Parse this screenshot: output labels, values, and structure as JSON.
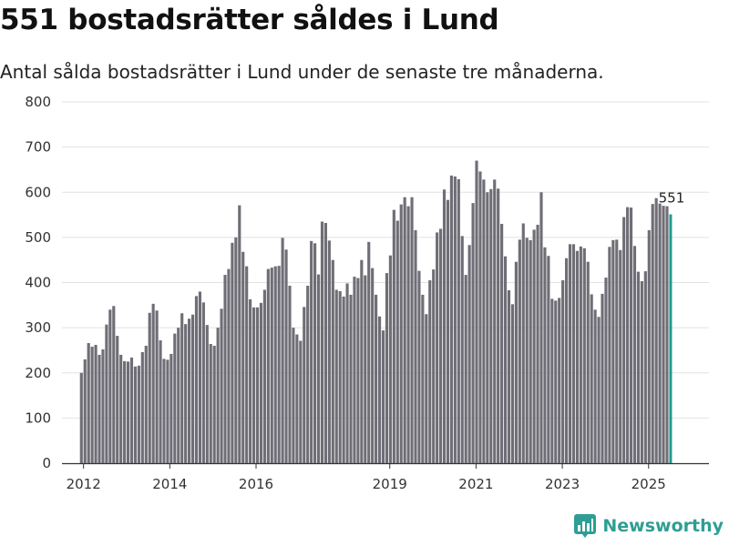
{
  "title": "551 bostadsrätter såldes i Lund",
  "subtitle": "Antal sålda bostadsrätter i Lund under de senaste tre månaderna.",
  "brand": {
    "name": "Newsworthy",
    "color": "#2e9e94",
    "icon": "newsworthy-logo-icon"
  },
  "colors": {
    "bar": "#6f6e76",
    "highlight": "#1f9a8e",
    "grid": "#e2e2e2",
    "axis": "#333333"
  },
  "chart_data": {
    "type": "bar",
    "title": "551 bostadsrätter såldes i Lund",
    "xlabel": "",
    "ylabel": "",
    "ylim": [
      0,
      800
    ],
    "yticks": [
      0,
      100,
      200,
      300,
      400,
      500,
      600,
      700,
      800
    ],
    "xlim": [
      2011.5,
      2026.5
    ],
    "xticks": [
      {
        "label": "2012",
        "pos": 2012.0
      },
      {
        "label": "2014",
        "pos": 2014.0
      },
      {
        "label": "2016",
        "pos": 2016.0
      },
      {
        "label": "2019",
        "pos": 2019.1
      },
      {
        "label": "2021",
        "pos": 2021.1
      },
      {
        "label": "2023",
        "pos": 2023.1
      },
      {
        "label": "2025",
        "pos": 2025.1
      }
    ],
    "start": 2011.95,
    "step": 0.0833,
    "values": [
      200,
      230,
      266,
      258,
      262,
      240,
      252,
      307,
      340,
      348,
      282,
      240,
      226,
      225,
      234,
      214,
      216,
      246,
      260,
      333,
      353,
      338,
      272,
      231,
      229,
      242,
      287,
      300,
      332,
      308,
      320,
      329,
      370,
      380,
      356,
      306,
      264,
      260,
      300,
      342,
      417,
      430,
      488,
      500,
      571,
      468,
      436,
      363,
      345,
      345,
      355,
      384,
      430,
      433,
      436,
      437,
      499,
      473,
      393,
      300,
      285,
      271,
      346,
      393,
      492,
      487,
      418,
      535,
      532,
      493,
      450,
      384,
      381,
      369,
      398,
      373,
      413,
      410,
      450,
      416,
      490,
      432,
      373,
      325,
      294,
      421,
      460,
      561,
      537,
      573,
      589,
      569,
      589,
      516,
      426,
      373,
      330,
      405,
      429,
      511,
      519,
      606,
      583,
      637,
      635,
      629,
      503,
      417,
      483,
      576,
      670,
      646,
      628,
      600,
      607,
      628,
      608,
      530,
      458,
      383,
      352,
      446,
      495,
      531,
      499,
      494,
      517,
      528,
      600,
      478,
      459,
      364,
      360,
      366,
      405,
      454,
      485,
      485,
      470,
      480,
      476,
      446,
      374,
      340,
      324,
      375,
      411,
      479,
      494,
      495,
      472,
      545,
      567,
      566,
      481,
      424,
      403,
      425,
      516,
      574,
      587,
      575,
      570,
      569,
      551
    ],
    "highlight_last": true,
    "annotation": {
      "text": "551",
      "series_index": "last"
    }
  }
}
